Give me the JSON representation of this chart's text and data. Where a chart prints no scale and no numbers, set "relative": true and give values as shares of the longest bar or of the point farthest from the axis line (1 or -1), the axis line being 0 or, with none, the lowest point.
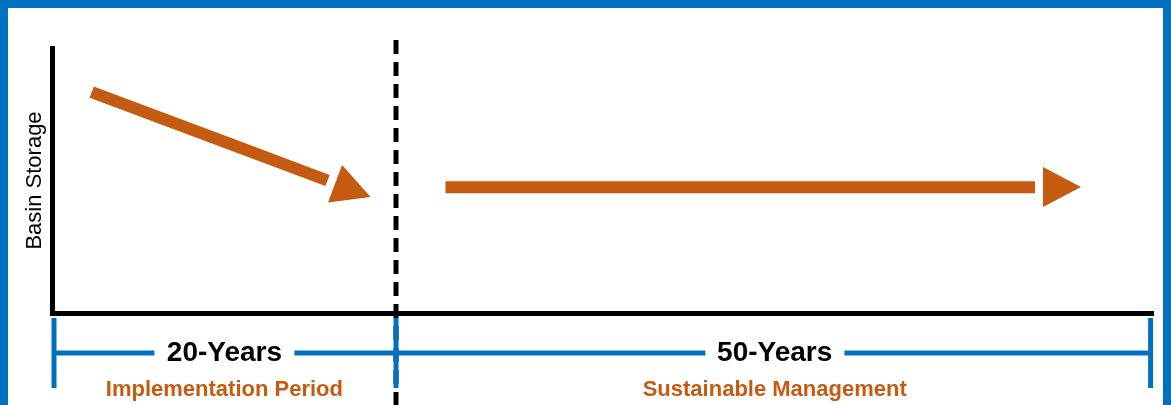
{
  "chart_data": {
    "type": "line",
    "relative": true,
    "ylabel": "Basin Storage",
    "grid": false,
    "legend": false,
    "marker": "none",
    "line_style": "solid",
    "categories": [
      null,
      null,
      null,
      null,
      null,
      null,
      null,
      null,
      null,
      null,
      null,
      null,
      null,
      null,
      null,
      null,
      null,
      null,
      null,
      null,
      null,
      null,
      null,
      null,
      null,
      null,
      null,
      null,
      null
    ],
    "series": [
      {
        "color": "#c55a11",
        "values": [
          null,
          1,
          null,
          null,
          null,
          null,
          null,
          0.6,
          null,
          null,
          null,
          null,
          null,
          null,
          null,
          null,
          null,
          null,
          null,
          null,
          null,
          null,
          null,
          null,
          null,
          null,
          null,
          null,
          null
        ]
      },
      {
        "color": "#c55a11",
        "values": [
          null,
          null,
          null,
          null,
          null,
          null,
          null,
          null,
          null,
          null,
          0.57,
          null,
          null,
          null,
          null,
          null,
          null,
          null,
          null,
          null,
          null,
          null,
          null,
          null,
          null,
          0.57,
          null,
          null,
          null
        ]
      }
    ],
    "annotations": [
      "20-Years",
      "Implementation Period",
      "50-Years",
      "Sustainable Management"
    ]
  }
}
